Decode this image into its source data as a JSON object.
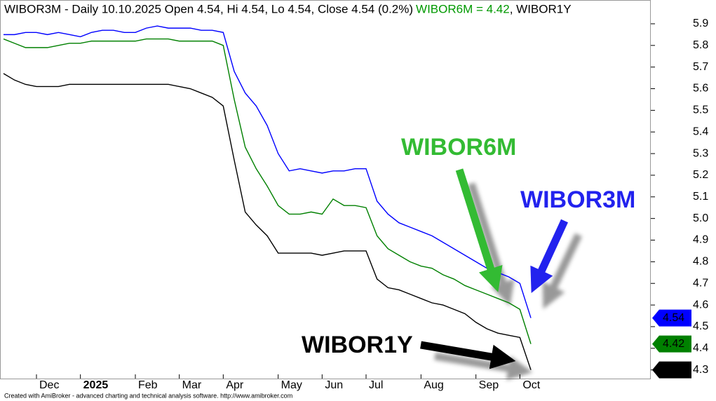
{
  "chart_data": {
    "type": "line",
    "title_parts": [
      "WIBOR3M - Daily 10.10.2025 Open 4.54, Hi 4.54, Lo 4.54, Close 4.54 (0.2%)",
      "WIBOR6M = 4.42",
      ", WIBOR1Y"
    ],
    "footer": "Created with AmiBroker - advanced charting and technical analysis software. http://www.amibroker.com",
    "categories": [
      null,
      null,
      null,
      "Dec",
      null,
      null,
      null,
      "2025",
      null,
      null,
      null,
      null,
      "Feb",
      null,
      null,
      null,
      "Mar",
      null,
      null,
      null,
      "Apr",
      null,
      null,
      null,
      null,
      "May",
      null,
      null,
      null,
      "Jun",
      null,
      null,
      null,
      "Jul",
      null,
      null,
      null,
      null,
      "Aug",
      null,
      null,
      null,
      null,
      "Sep",
      null,
      null,
      null,
      "Oct",
      null
    ],
    "series": [
      {
        "name": "WIBOR3M",
        "color": "#0000ff",
        "values": [
          5.85,
          5.85,
          5.86,
          5.86,
          5.85,
          5.86,
          5.85,
          5.84,
          5.86,
          5.87,
          5.87,
          5.86,
          5.86,
          5.88,
          5.89,
          5.88,
          5.88,
          5.88,
          5.87,
          5.87,
          5.86,
          5.68,
          5.58,
          5.52,
          5.43,
          5.3,
          5.22,
          5.23,
          5.22,
          5.21,
          5.22,
          5.22,
          5.23,
          5.23,
          5.08,
          5.02,
          4.98,
          4.96,
          4.94,
          4.92,
          4.89,
          4.86,
          4.83,
          4.8,
          4.77,
          4.75,
          4.73,
          4.7,
          4.54
        ]
      },
      {
        "name": "WIBOR6M",
        "color": "#008000",
        "values": [
          5.83,
          5.81,
          5.79,
          5.79,
          5.79,
          5.8,
          5.81,
          5.81,
          5.82,
          5.82,
          5.82,
          5.82,
          5.82,
          5.83,
          5.83,
          5.83,
          5.82,
          5.82,
          5.82,
          5.82,
          5.8,
          5.55,
          5.33,
          5.23,
          5.15,
          5.06,
          5.02,
          5.02,
          5.03,
          5.02,
          5.09,
          5.06,
          5.06,
          5.05,
          4.92,
          4.86,
          4.83,
          4.8,
          4.78,
          4.77,
          4.74,
          4.72,
          4.69,
          4.67,
          4.65,
          4.63,
          4.61,
          4.58,
          4.42
        ]
      },
      {
        "name": "WIBOR1Y",
        "color": "#000000",
        "values": [
          5.67,
          5.64,
          5.62,
          5.61,
          5.61,
          5.61,
          5.62,
          5.62,
          5.62,
          5.62,
          5.62,
          5.62,
          5.62,
          5.62,
          5.62,
          5.62,
          5.61,
          5.6,
          5.58,
          5.56,
          5.52,
          5.27,
          5.03,
          4.97,
          4.92,
          4.84,
          4.84,
          4.84,
          4.84,
          4.83,
          4.84,
          4.85,
          4.85,
          4.85,
          4.72,
          4.68,
          4.67,
          4.65,
          4.63,
          4.61,
          4.6,
          4.58,
          4.56,
          4.52,
          4.49,
          4.47,
          4.46,
          4.45,
          4.3
        ]
      }
    ],
    "annotation_colors": [
      "#33bb33",
      "#2222ee",
      "#000000"
    ],
    "ylim": [
      4.26,
      6.01
    ],
    "yticks": [
      4.3,
      4.4,
      4.5,
      4.6,
      4.7,
      4.8,
      4.9,
      {
        "value": 5.0,
        "label": "5.0"
      },
      5.1,
      5.2,
      5.3,
      5.4,
      5.5,
      5.6,
      5.7,
      5.8,
      5.9
    ]
  }
}
